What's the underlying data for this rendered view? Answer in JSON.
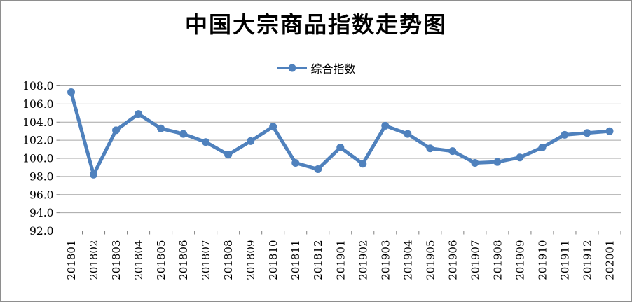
{
  "chart_data": {
    "type": "line",
    "title": "中国大宗商品指数走势图",
    "legend_position": "top",
    "categories": [
      "201801",
      "201802",
      "201803",
      "201804",
      "201805",
      "201806",
      "201807",
      "201808",
      "201809",
      "201810",
      "201811",
      "201812",
      "201901",
      "201902",
      "201903",
      "201904",
      "201905",
      "201906",
      "201907",
      "201908",
      "201909",
      "201910",
      "201911",
      "201912",
      "202001"
    ],
    "series": [
      {
        "name": "综合指数",
        "marker": "circle",
        "color": "#4F81BD",
        "values": [
          107.3,
          98.2,
          103.1,
          104.9,
          103.3,
          102.7,
          101.8,
          100.4,
          101.9,
          103.5,
          99.5,
          98.8,
          101.2,
          99.4,
          103.6,
          102.7,
          101.1,
          100.8,
          99.5,
          99.6,
          100.1,
          101.2,
          102.6,
          102.8,
          103.0
        ]
      }
    ],
    "ylim": [
      92.0,
      108.0
    ],
    "y_tick_step": 2.0,
    "y_tick_labels": [
      "92.0",
      "94.0",
      "96.0",
      "98.0",
      "100.0",
      "102.0",
      "104.0",
      "106.0",
      "108.0"
    ],
    "grid": "horizontal",
    "colors": {
      "line": "#4F81BD",
      "gridline": "#A6A6A6",
      "axis": "#808080",
      "text": "#000000",
      "background": "#FFFFFF",
      "frame_border": "#8E8E8E"
    }
  }
}
